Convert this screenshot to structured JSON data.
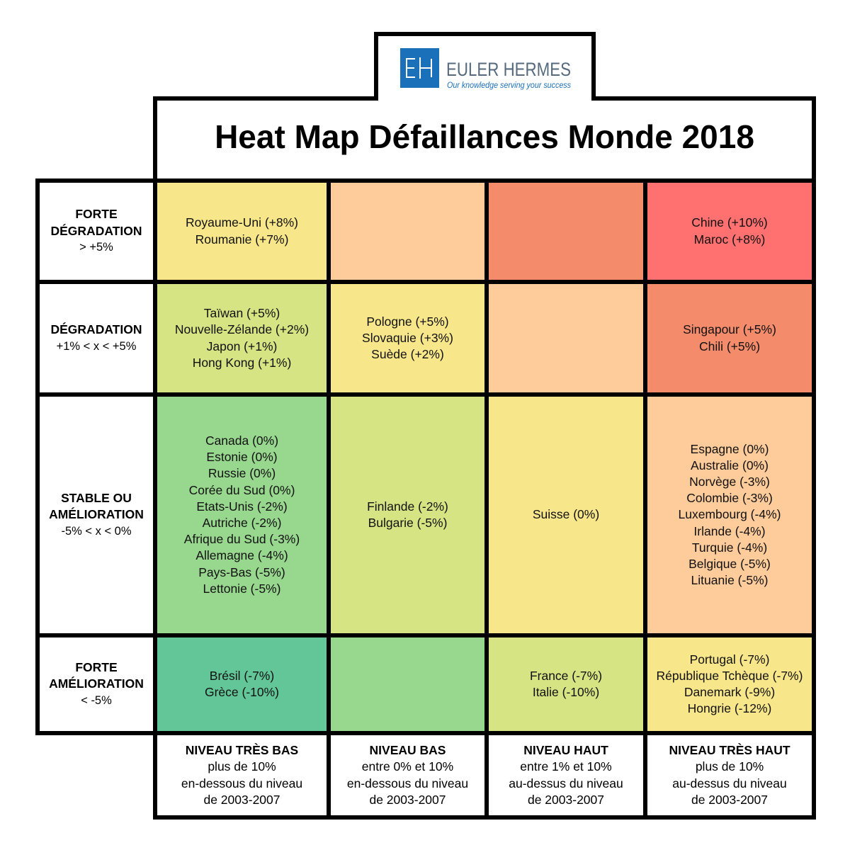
{
  "logo": {
    "brand": "EULER HERMES",
    "tagline": "Our knowledge serving your success",
    "brand_color": "#1B70BA"
  },
  "chart_data": {
    "type": "heatmap",
    "title": "Heat Map Défaillances Monde 2018",
    "rows": [
      {
        "label": "FORTE DÉGRADATION",
        "range": "> +5%",
        "cells": [
          {
            "color": "#F7E68A",
            "items": [
              "Royaume-Uni (+8%)",
              "Roumanie (+7%)"
            ]
          },
          {
            "color": "#FECB9A",
            "items": []
          },
          {
            "color": "#F48B6A",
            "items": []
          },
          {
            "color": "#FF7170",
            "items": [
              "Chine (+10%)",
              "Maroc (+8%)"
            ]
          }
        ]
      },
      {
        "label": "DÉGRADATION",
        "range": "+1% < x < +5%",
        "cells": [
          {
            "color": "#D6E483",
            "items": [
              "Taïwan (+5%)",
              "Nouvelle-Zélande (+2%)",
              "Japon (+1%)",
              "Hong Kong (+1%)"
            ]
          },
          {
            "color": "#F7E68A",
            "items": [
              "Pologne (+5%)",
              "Slovaquie (+3%)",
              "Suède (+2%)"
            ]
          },
          {
            "color": "#FECB9A",
            "items": []
          },
          {
            "color": "#F48B6A",
            "items": [
              "Singapour (+5%)",
              "Chili (+5%)"
            ]
          }
        ]
      },
      {
        "label": "STABLE OU AMÉLIORATION",
        "range": "-5% < x < 0%",
        "cells": [
          {
            "color": "#98D78E",
            "items": [
              "Canada (0%)",
              "Estonie (0%)",
              "Russie (0%)",
              "Corée du Sud (0%)",
              "Etats-Unis (-2%)",
              "Autriche (-2%)",
              "Afrique du Sud (-3%)",
              "Allemagne (-4%)",
              "Pays-Bas (-5%)",
              "Lettonie (-5%)"
            ]
          },
          {
            "color": "#D6E483",
            "items": [
              "Finlande (-2%)",
              "Bulgarie (-5%)"
            ]
          },
          {
            "color": "#F7E68A",
            "items": [
              "Suisse (0%)"
            ]
          },
          {
            "color": "#FECB9A",
            "items": [
              "Espagne (0%)",
              "Australie (0%)",
              "Norvège (-3%)",
              "Colombie (-3%)",
              "Luxembourg (-4%)",
              "Irlande (-4%)",
              "Turquie (-4%)",
              "Belgique (-5%)",
              "Lituanie (-5%)"
            ]
          }
        ]
      },
      {
        "label": "FORTE AMÉLIORATION",
        "range": "< -5%",
        "cells": [
          {
            "color": "#62C698",
            "items": [
              "Brésil (-7%)",
              "Grèce (-10%)"
            ]
          },
          {
            "color": "#98D78E",
            "items": []
          },
          {
            "color": "#D6E483",
            "items": [
              "France (-7%)",
              "Italie (-10%)"
            ]
          },
          {
            "color": "#F7E68A",
            "items": [
              "Portugal (-7%)",
              "République Tchèque (-7%)",
              "Danemark (-9%)",
              "Hongrie (-12%)"
            ]
          }
        ]
      }
    ],
    "columns": [
      {
        "label": "NIVEAU TRÈS BAS",
        "description": [
          "plus de 10%",
          "en-dessous du niveau",
          "de 2003-2007"
        ]
      },
      {
        "label": "NIVEAU BAS",
        "description": [
          "entre 0% et 10%",
          "en-dessous du niveau",
          "de 2003-2007"
        ]
      },
      {
        "label": "NIVEAU HAUT",
        "description": [
          "entre 1% et 10%",
          "au-dessus du niveau",
          "de 2003-2007"
        ]
      },
      {
        "label": "NIVEAU TRÈS HAUT",
        "description": [
          "plus de 10%",
          "au-dessus du niveau",
          "de 2003-2007"
        ]
      }
    ]
  }
}
